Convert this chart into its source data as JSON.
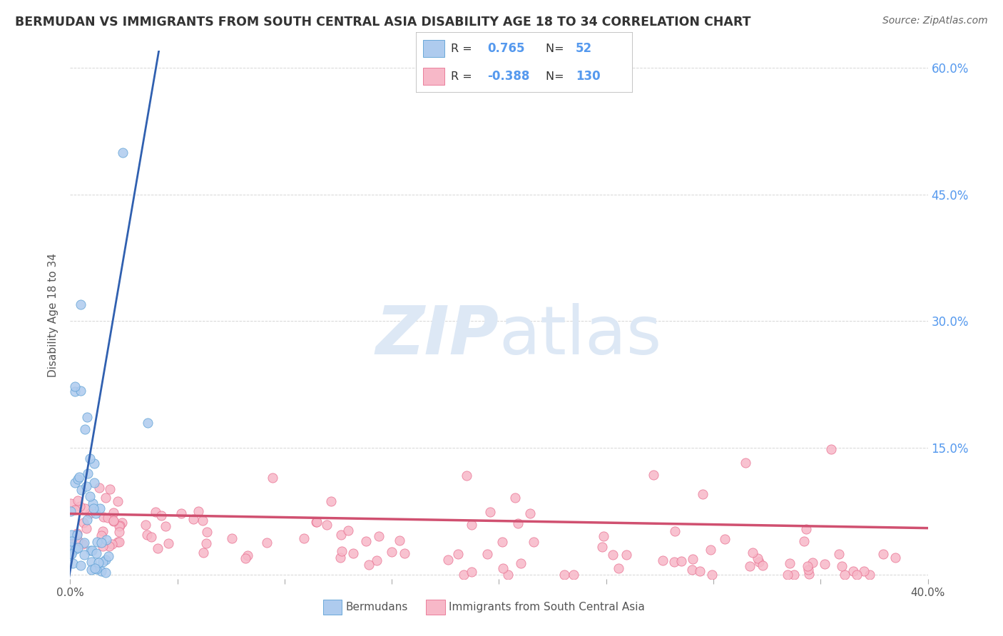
{
  "title": "BERMUDAN VS IMMIGRANTS FROM SOUTH CENTRAL ASIA DISABILITY AGE 18 TO 34 CORRELATION CHART",
  "source": "Source: ZipAtlas.com",
  "ylabel": "Disability Age 18 to 34",
  "xlim": [
    0.0,
    0.4
  ],
  "ylim": [
    -0.005,
    0.62
  ],
  "ylabel_tick_vals": [
    0.0,
    0.15,
    0.3,
    0.45,
    0.6
  ],
  "ylabel_tick_labels": [
    "",
    "15.0%",
    "30.0%",
    "45.0%",
    "60.0%"
  ],
  "blue_R": "0.765",
  "blue_N": "52",
  "pink_R": "-0.388",
  "pink_N": "130",
  "blue_fill_color": "#aecbee",
  "pink_fill_color": "#f7b8c8",
  "blue_edge_color": "#5a9fd4",
  "pink_edge_color": "#e87090",
  "blue_line_color": "#3060b0",
  "pink_line_color": "#d05070",
  "watermark_zip": "ZIP",
  "watermark_atlas": "atlas",
  "watermark_color": "#dde8f5",
  "legend_label_blue": "Bermudans",
  "legend_label_pink": "Immigrants from South Central Asia",
  "background_color": "#ffffff",
  "grid_color": "#cccccc",
  "right_tick_color": "#5599ee",
  "title_color": "#333333",
  "source_color": "#666666",
  "label_color": "#555555"
}
